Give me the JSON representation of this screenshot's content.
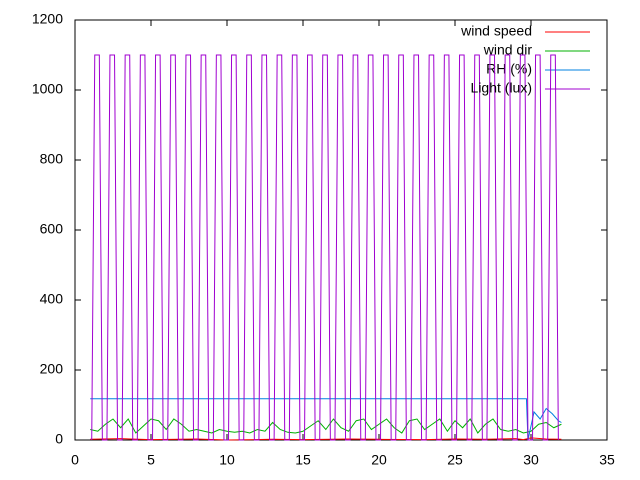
{
  "chart_data": {
    "type": "line",
    "xlim": [
      0,
      35
    ],
    "xticks": [
      0,
      5,
      10,
      15,
      20,
      25,
      30,
      35
    ],
    "ylim": [
      0,
      1200
    ],
    "yticks": [
      0,
      200,
      400,
      600,
      800,
      1000,
      1200
    ],
    "legend": "top-right",
    "series": [
      {
        "name": "wind speed",
        "color": "#ff0000",
        "x": [
          1,
          3,
          5,
          8,
          10,
          13,
          15,
          18,
          20,
          23,
          25,
          27,
          29,
          29.5,
          30,
          31,
          32
        ],
        "values": [
          2,
          4,
          1,
          3,
          0,
          2,
          1,
          3,
          2,
          1,
          3,
          2,
          4,
          1,
          6,
          3,
          2
        ]
      },
      {
        "name": "wind dir",
        "color": "#00b000",
        "x": [
          1,
          1.5,
          2,
          2.5,
          3,
          3.5,
          4,
          4.5,
          5,
          5.5,
          6,
          6.5,
          7,
          7.5,
          8,
          8.5,
          9,
          9.5,
          10,
          10.5,
          11,
          11.5,
          12,
          12.5,
          13,
          13.5,
          14,
          14.5,
          15,
          15.5,
          16,
          16.5,
          17,
          17.5,
          18,
          18.5,
          19,
          19.5,
          20,
          20.5,
          21,
          21.5,
          22,
          22.5,
          23,
          23.5,
          24,
          24.5,
          25,
          25.5,
          26,
          26.5,
          27,
          27.5,
          28,
          28.5,
          29,
          29.5,
          30,
          30.5,
          31,
          31.5,
          32
        ],
        "values": [
          30,
          25,
          45,
          60,
          35,
          60,
          20,
          40,
          60,
          55,
          30,
          60,
          45,
          25,
          30,
          25,
          20,
          30,
          25,
          22,
          25,
          20,
          30,
          25,
          50,
          30,
          22,
          20,
          25,
          40,
          55,
          30,
          60,
          35,
          25,
          55,
          60,
          30,
          45,
          60,
          35,
          20,
          55,
          60,
          30,
          45,
          60,
          25,
          55,
          35,
          60,
          20,
          45,
          60,
          30,
          25,
          30,
          20,
          25,
          45,
          50,
          35,
          45
        ]
      },
      {
        "name": "RH (%)",
        "color": "#0080e0",
        "x": [
          1,
          29.7,
          29.8,
          30.2,
          30.6,
          31,
          31.4,
          31.8,
          32
        ],
        "values": [
          118,
          118,
          0,
          80,
          60,
          90,
          75,
          55,
          50
        ]
      },
      {
        "name": "Light (lux)",
        "color": "#a000d0",
        "x": [
          1.1,
          1.3,
          1.6,
          1.8,
          2.1,
          2.3,
          2.6,
          2.8,
          3.1,
          3.3,
          3.6,
          3.8,
          4.1,
          4.3,
          4.6,
          4.8,
          5.1,
          5.3,
          5.6,
          5.8,
          6.1,
          6.3,
          6.6,
          6.8,
          7.1,
          7.3,
          7.6,
          7.8,
          8.1,
          8.3,
          8.6,
          8.8,
          9.1,
          9.3,
          9.6,
          9.8,
          10.1,
          10.3,
          10.6,
          10.8,
          11.1,
          11.3,
          11.6,
          11.8,
          12.1,
          12.3,
          12.6,
          12.8,
          13.1,
          13.3,
          13.6,
          13.8,
          14.1,
          14.3,
          14.6,
          14.8,
          15.1,
          15.3,
          15.6,
          15.8,
          16.1,
          16.3,
          16.6,
          16.8,
          17.1,
          17.3,
          17.6,
          17.8,
          18.1,
          18.3,
          18.6,
          18.8,
          19.1,
          19.3,
          19.6,
          19.8,
          20.1,
          20.3,
          20.6,
          20.8,
          21.1,
          21.3,
          21.6,
          21.8,
          22.1,
          22.3,
          22.6,
          22.8,
          23.1,
          23.3,
          23.6,
          23.8,
          24.1,
          24.3,
          24.6,
          24.8,
          25.1,
          25.3,
          25.6,
          25.8,
          26.1,
          26.3,
          26.6,
          26.8,
          27.1,
          27.3,
          27.6,
          27.8,
          28.1,
          28.3,
          28.6,
          28.8,
          29.1,
          29.3,
          29.6,
          29.8,
          30.1,
          30.3,
          30.6,
          30.8,
          31.1,
          31.3,
          31.6,
          31.8
        ],
        "values": [
          0,
          1100,
          1100,
          0,
          0,
          1100,
          1100,
          0,
          0,
          1100,
          1100,
          0,
          0,
          1100,
          1100,
          0,
          0,
          1100,
          1100,
          0,
          0,
          1100,
          1100,
          0,
          0,
          1100,
          1100,
          0,
          0,
          1100,
          1100,
          0,
          0,
          1100,
          1100,
          0,
          0,
          1100,
          1100,
          0,
          0,
          1100,
          1100,
          0,
          0,
          1100,
          1100,
          0,
          0,
          1100,
          1100,
          0,
          0,
          1100,
          1100,
          0,
          0,
          1100,
          1100,
          0,
          0,
          1100,
          1100,
          0,
          0,
          1100,
          1100,
          0,
          0,
          1100,
          1100,
          0,
          0,
          1100,
          1100,
          0,
          0,
          1100,
          1100,
          0,
          0,
          1100,
          1100,
          0,
          0,
          1100,
          1100,
          0,
          0,
          1100,
          1100,
          0,
          0,
          1100,
          1100,
          0,
          0,
          1100,
          1100,
          0,
          0,
          1100,
          1100,
          0,
          0,
          1100,
          1100,
          0,
          0,
          1100,
          1100,
          0,
          0,
          1100,
          1100,
          0,
          0,
          1100,
          1100,
          0,
          0,
          1100,
          1100,
          0
        ]
      }
    ]
  }
}
